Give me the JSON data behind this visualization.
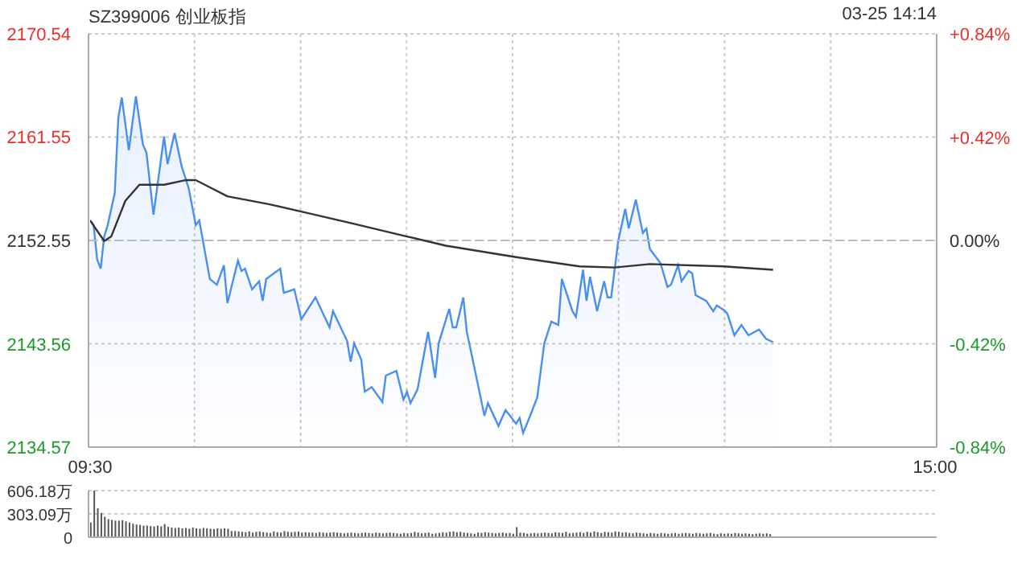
{
  "chart_data": [
    {
      "type": "area",
      "title": "SZ399006 创业板指",
      "annotations": [
        "03-25 14:14"
      ],
      "categories": [
        "09:30",
        null,
        null,
        null,
        null,
        null,
        null,
        null,
        null,
        null,
        null,
        null,
        null,
        null,
        null,
        null,
        null,
        null,
        null,
        null,
        null,
        null,
        null,
        null,
        null,
        null,
        null,
        null,
        null,
        null,
        null,
        null,
        null,
        null,
        null,
        null,
        null,
        null,
        null,
        null,
        null,
        null,
        null,
        null,
        null,
        null,
        null,
        null,
        null,
        null,
        null,
        null,
        null,
        null,
        null,
        null,
        null,
        null,
        null,
        null,
        null,
        null,
        null,
        null,
        null,
        null,
        null,
        null,
        null,
        null,
        null,
        null,
        null,
        null,
        null,
        null,
        null,
        null,
        null,
        null,
        null,
        null,
        null,
        null,
        null,
        null,
        null,
        null,
        null,
        null,
        null,
        null,
        null,
        null,
        null,
        null,
        null,
        null,
        null,
        null,
        null,
        null,
        null,
        null,
        null,
        null,
        null,
        null,
        null,
        null,
        null,
        null,
        null,
        null,
        null,
        null,
        null,
        null,
        null,
        null,
        null,
        null,
        null,
        null,
        null,
        null,
        null,
        null,
        null,
        null,
        null,
        null,
        null,
        null,
        null,
        null,
        null,
        null,
        null,
        null,
        null,
        null,
        null,
        null,
        null,
        null,
        null,
        null,
        null,
        null,
        null,
        null,
        null,
        null,
        null,
        null,
        null,
        null,
        null,
        null,
        null,
        null,
        null,
        null,
        null,
        null,
        null,
        null,
        null,
        null,
        null,
        null,
        null,
        null,
        null,
        null,
        null,
        null,
        null,
        null,
        null,
        null,
        null,
        null,
        null,
        null,
        null,
        null,
        null,
        null,
        null,
        null,
        null,
        null,
        null,
        null,
        null,
        null,
        null,
        null,
        null,
        null,
        null,
        null,
        null,
        null,
        null,
        null,
        null,
        null,
        null,
        null,
        null,
        null,
        null,
        null,
        null,
        null,
        null,
        null,
        null,
        null,
        null,
        null,
        null,
        null,
        null,
        null,
        null,
        null,
        null,
        null,
        null,
        null,
        null,
        null,
        null,
        null,
        null,
        null,
        "15:00"
      ],
      "ylim": [
        2134.57,
        2170.54
      ],
      "yticks": [
        2134.57,
        2143.56,
        2152.55,
        2161.55,
        2170.54
      ],
      "y2lim": [
        -0.84,
        0.84
      ],
      "y2ticks": [
        {
          "value": -0.84,
          "label": "-0.84%"
        },
        {
          "value": -0.42,
          "label": "-0.42%"
        },
        {
          "value": 0,
          "label": "0.00%"
        },
        {
          "value": 0.42,
          "label": "+0.42%"
        },
        {
          "value": 0.84,
          "label": "+0.84%"
        }
      ],
      "grid": true,
      "ref_lines": [
        {
          "axis": "y",
          "value": 2152.55,
          "color": "#bbbbbb",
          "line_style": "dashed"
        }
      ],
      "series": [
        {
          "color": "#4a8ff0",
          "values": [
            2154.3,
            2153.9,
            2150.9,
            2150.1,
            2152.9,
            2153.9,
            null,
            2156.7,
            2163.2,
            2165.0,
            null,
            2160.4,
            null,
            2165.1,
            null,
            2160.9,
            2160.2,
            null,
            2154.8,
            null,
            null,
            2161.6,
            2159.2,
            null,
            2161.9,
            null,
            2159.0,
            null,
            2157.1,
            null,
            2153.9,
            2154.3,
            null,
            null,
            2149.2,
            null,
            2148.7,
            null,
            2150.4,
            2147.1,
            null,
            null,
            2150.8,
            2149.9,
            2150.1,
            null,
            2148.3,
            null,
            2149.0,
            2147.3,
            2149.2,
            null,
            null,
            null,
            2150.1,
            2148.0,
            null,
            null,
            2148.3,
            null,
            2145.7,
            null,
            null,
            null,
            2147.6,
            null,
            null,
            null,
            2145.0,
            2146.4,
            null,
            null,
            null,
            2143.8,
            2142.0,
            2143.6,
            null,
            2142.2,
            2139.4,
            null,
            2139.8,
            null,
            null,
            2138.5,
            2140.8,
            null,
            null,
            2141.2,
            null,
            2138.7,
            2139.4,
            2138.4,
            null,
            2139.6,
            null,
            null,
            2144.6,
            null,
            2140.6,
            2143.6,
            null,
            null,
            2146.6,
            2145.0,
            2145.0,
            null,
            2147.6,
            2144.6,
            null,
            2141.7,
            null,
            null,
            2137.3,
            2138.4,
            null,
            null,
            2136.4,
            null,
            2137.8,
            null,
            null,
            2136.6,
            2137.1,
            2135.8,
            null,
            2137.3,
            null,
            2138.9,
            null,
            2143.6,
            null,
            2145.5,
            null,
            2145.2,
            2149.2,
            null,
            null,
            2146.4,
            2145.9,
            null,
            2150.0,
            2147.3,
            2149.4,
            null,
            2146.4,
            null,
            2149.0,
            2147.6,
            2147.6,
            null,
            2152.5,
            null,
            2155.3,
            2153.6,
            null,
            2156.1,
            null,
            2153.2,
            2153.6,
            2151.8,
            null,
            null,
            2150.6,
            null,
            2148.5,
            2148.7,
            null,
            2150.4,
            2149.0,
            null,
            2149.9,
            2149.7,
            2147.8,
            null,
            null,
            2147.3,
            null,
            2146.4,
            2146.9,
            null,
            2146.5,
            2146.2,
            null,
            2144.3,
            null,
            2145.2,
            null,
            2144.3,
            null,
            null,
            2144.8,
            null,
            2144.0,
            null,
            2143.7,
            null,
            null,
            null,
            null,
            null,
            null,
            null,
            null,
            null,
            null,
            null,
            null,
            null,
            null,
            null,
            null,
            null,
            null,
            null,
            null,
            null,
            null,
            null,
            null,
            null,
            null,
            null,
            null,
            null,
            null,
            null,
            null,
            null,
            null,
            null,
            null,
            null,
            null,
            null,
            null,
            null,
            null,
            null,
            null,
            null,
            null
          ]
        },
        {
          "type": "line",
          "color": "#333333",
          "values": [
            2154.3,
            null,
            null,
            null,
            2152.5,
            null,
            2152.9,
            null,
            null,
            null,
            2156.0,
            null,
            null,
            null,
            2157.4,
            null,
            null,
            null,
            null,
            null,
            null,
            2157.4,
            null,
            null,
            null,
            null,
            null,
            2157.8,
            null,
            null,
            2157.8,
            null,
            null,
            null,
            null,
            null,
            null,
            null,
            null,
            2156.4,
            null,
            null,
            null,
            null,
            null,
            null,
            null,
            null,
            null,
            null,
            null,
            2155.7,
            null,
            null,
            null,
            null,
            null,
            null,
            null,
            null,
            null,
            2155.0,
            null,
            null,
            null,
            null,
            null,
            null,
            null,
            null,
            null,
            null,
            null,
            null,
            null,
            2154.0,
            null,
            null,
            null,
            null,
            null,
            null,
            null,
            null,
            null,
            null,
            null,
            null,
            null,
            null,
            2152.9,
            null,
            null,
            null,
            null,
            null,
            null,
            null,
            null,
            null,
            null,
            2152.1,
            null,
            null,
            null,
            null,
            null,
            null,
            null,
            null,
            null,
            null,
            null,
            null,
            null,
            null,
            null,
            null,
            null,
            null,
            null,
            2151.1,
            null,
            null,
            null,
            null,
            null,
            null,
            null,
            null,
            null,
            null,
            null,
            null,
            null,
            null,
            null,
            null,
            null,
            2150.3,
            null,
            null,
            null,
            null,
            null,
            null,
            null,
            null,
            null,
            2150.2,
            null,
            null,
            null,
            null,
            null,
            null,
            null,
            null,
            null,
            2150.5,
            null,
            null,
            null,
            null,
            null,
            null,
            null,
            null,
            null,
            null,
            null,
            null,
            null,
            null,
            null,
            null,
            null,
            null,
            null,
            null,
            2150.3,
            null,
            null,
            null,
            null,
            null,
            null,
            null,
            null,
            null,
            null,
            null,
            null,
            null,
            2150.0,
            null,
            null,
            null,
            null,
            null,
            null,
            null,
            null,
            null,
            null,
            null,
            null,
            null,
            null,
            null,
            null,
            null,
            null,
            null,
            null,
            null,
            null,
            null,
            null,
            null,
            null,
            null,
            null,
            null,
            null,
            null,
            null,
            null,
            null,
            null,
            null,
            null,
            null,
            null,
            null,
            null,
            null,
            null,
            null,
            null,
            null
          ]
        }
      ]
    },
    {
      "type": "bar",
      "grid": "y",
      "categories": [
        null,
        null,
        null,
        null,
        null,
        null,
        null,
        null,
        null,
        null,
        null,
        null,
        null,
        null,
        null,
        null,
        null,
        null,
        null,
        null,
        null,
        null,
        null,
        null,
        null,
        null,
        null,
        null,
        null,
        null,
        null,
        null,
        null,
        null,
        null,
        null,
        null,
        null,
        null,
        null,
        null,
        null,
        null,
        null,
        null,
        null,
        null,
        null,
        null,
        null,
        null,
        null,
        null,
        null,
        null,
        null,
        null,
        null,
        null,
        null,
        null,
        null,
        null,
        null,
        null,
        null,
        null,
        null,
        null,
        null,
        null,
        null,
        null,
        null,
        null,
        null,
        null,
        null,
        null,
        null,
        null,
        null,
        null,
        null,
        null,
        null,
        null,
        null,
        null,
        null,
        null,
        null,
        null,
        null,
        null,
        null,
        null,
        null,
        null,
        null,
        null,
        null,
        null,
        null,
        null,
        null,
        null,
        null,
        null,
        null,
        null,
        null,
        null,
        null,
        null,
        null,
        null,
        null,
        null,
        null,
        null,
        null,
        null,
        null,
        null,
        null,
        null,
        null,
        null,
        null,
        null,
        null,
        null,
        null,
        null,
        null,
        null,
        null,
        null,
        null,
        null,
        null,
        null,
        null,
        null,
        null,
        null,
        null,
        null,
        null,
        null,
        null,
        null,
        null,
        null,
        null,
        null,
        null,
        null,
        null,
        null,
        null,
        null,
        null,
        null,
        null,
        null,
        null,
        null,
        null,
        null,
        null,
        null,
        null,
        null,
        null,
        null,
        null,
        null,
        null,
        null,
        null,
        null,
        null,
        null,
        null,
        null,
        null,
        null,
        null,
        null,
        null,
        null,
        null,
        null,
        null,
        null,
        null,
        null,
        null,
        null,
        null,
        null,
        null,
        null,
        null,
        null,
        null,
        null,
        null,
        null,
        null,
        null,
        null,
        null,
        null,
        null,
        null,
        null,
        null,
        null,
        null,
        null,
        null,
        null,
        null,
        null,
        null,
        null,
        null,
        null,
        null,
        null,
        null,
        null,
        null,
        null,
        null,
        null,
        null,
        null
      ],
      "ylim": [
        0,
        606.18
      ],
      "yticks": [
        0,
        {
          "value": 303.09,
          "label": "303.09万"
        },
        {
          "value": 606.18,
          "label": "606.18万"
        }
      ],
      "series": [
        {
          "color": "#555555",
          "values": [
            190,
            606.18,
            375,
            315,
            265,
            235,
            225,
            215,
            215,
            220,
            205,
            190,
            175,
            165,
            160,
            150,
            150,
            145,
            140,
            150,
            140,
            170,
            135,
            125,
            120,
            125,
            115,
            120,
            110,
            125,
            115,
            110,
            120,
            115,
            110,
            105,
            115,
            110,
            115,
            110,
            80,
            80,
            75,
            70,
            65,
            75,
            60,
            70,
            75,
            65,
            60,
            55,
            75,
            65,
            60,
            80,
            70,
            65,
            70,
            75,
            60,
            65,
            60,
            60,
            55,
            65,
            60,
            55,
            60,
            65,
            60,
            55,
            50,
            55,
            60,
            55,
            50,
            55,
            60,
            55,
            50,
            60,
            55,
            50,
            55,
            60,
            55,
            50,
            45,
            55,
            50,
            55,
            70,
            60,
            50,
            55,
            60,
            45,
            50,
            55,
            65,
            60,
            70,
            75,
            65,
            70,
            60,
            55,
            50,
            45,
            60,
            55,
            65,
            60,
            55,
            50,
            55,
            60,
            50,
            55,
            45,
            130,
            60,
            55,
            45,
            50,
            55,
            50,
            55,
            60,
            55,
            50,
            65,
            60,
            55,
            70,
            50,
            55,
            60,
            65,
            55,
            70,
            60,
            75,
            65,
            55,
            70,
            65,
            60,
            75,
            70,
            60,
            65,
            55,
            50,
            60,
            55,
            50,
            45,
            55,
            50,
            45,
            55,
            50,
            45,
            50,
            55,
            45,
            50,
            55,
            50,
            45,
            55,
            50,
            45,
            50,
            55,
            45,
            40,
            50,
            45,
            50,
            45,
            55,
            50,
            45,
            50,
            45,
            40,
            45,
            50,
            45,
            50,
            40,
            null,
            null,
            null,
            null,
            null,
            null,
            null,
            null,
            null,
            null,
            null,
            null,
            null,
            null,
            null,
            null,
            null,
            null,
            null,
            null,
            null,
            null,
            null,
            null,
            null,
            null,
            null,
            null,
            null,
            null,
            null,
            null,
            null,
            null,
            null,
            null,
            null,
            null,
            null,
            null,
            null,
            null,
            null,
            null,
            null,
            null,
            null
          ]
        }
      ]
    }
  ]
}
